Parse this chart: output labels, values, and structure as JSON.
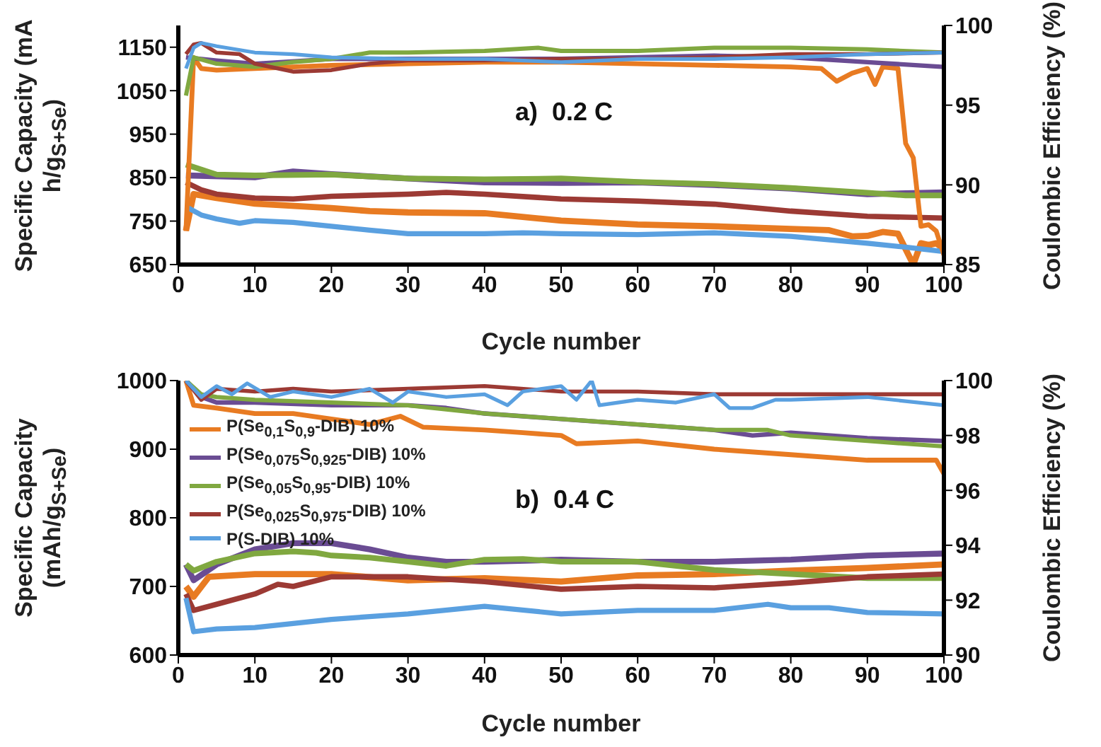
{
  "chart_data": [
    {
      "type": "line",
      "xlabel": "Cycle number",
      "ylabel": "Specific  Capacity (mA h/g$_{S+Se}$)",
      "y2label": "Coulombic Efficiency (%)",
      "annotations": [
        "a)  0.2 C"
      ],
      "xlim": [
        0,
        100
      ],
      "xticks": [
        0,
        10,
        20,
        30,
        40,
        50,
        60,
        70,
        80,
        90,
        100
      ],
      "ylim": [
        650,
        1200
      ],
      "yticks": [
        650,
        750,
        850,
        950,
        1050,
        1150
      ],
      "y2lim": [
        85,
        100
      ],
      "y2ticks": [
        85,
        90,
        95,
        100
      ],
      "series": [
        {
          "color": "#e87b22",
          "x": [
            1,
            2,
            5,
            10,
            20,
            25,
            30,
            40,
            50,
            60,
            70,
            80,
            85,
            88,
            90,
            92,
            94,
            96,
            97,
            98,
            99,
            100
          ],
          "values": [
            728,
            812,
            803,
            790,
            780,
            773,
            770,
            768,
            751,
            742,
            738,
            732,
            729,
            715,
            716,
            725,
            721,
            650,
            699,
            695,
            699,
            686
          ]
        },
        {
          "color": "#6a4c93",
          "x": [
            1,
            10,
            15,
            20,
            30,
            40,
            50,
            60,
            70,
            80,
            90,
            100
          ],
          "values": [
            855,
            851,
            864,
            858,
            848,
            839,
            838,
            839,
            833,
            825,
            812,
            816
          ]
        },
        {
          "color": "#80a840",
          "x": [
            1,
            5,
            10,
            20,
            30,
            40,
            50,
            60,
            70,
            80,
            90,
            95,
            100
          ],
          "values": [
            880,
            857,
            855,
            857,
            848,
            846,
            848,
            840,
            835,
            826,
            815,
            809,
            809
          ]
        },
        {
          "color": "#9c3a34",
          "x": [
            1,
            3,
            5,
            10,
            15,
            20,
            30,
            35,
            40,
            50,
            60,
            70,
            80,
            90,
            100
          ],
          "values": [
            839,
            822,
            812,
            803,
            801,
            807,
            812,
            816,
            812,
            801,
            796,
            789,
            773,
            761,
            757
          ]
        },
        {
          "color": "#5aa0e0",
          "x": [
            1,
            3,
            5,
            8,
            10,
            15,
            20,
            25,
            30,
            40,
            45,
            50,
            60,
            70,
            80,
            90,
            95,
            100
          ],
          "values": [
            783,
            764,
            755,
            745,
            751,
            747,
            738,
            729,
            721,
            721,
            723,
            721,
            719,
            723,
            715,
            699,
            690,
            680
          ]
        },
        {
          "color": "#e87b22",
          "axis": "y2",
          "x": [
            1,
            2,
            3,
            5,
            10,
            20,
            30,
            40,
            50,
            60,
            70,
            80,
            84,
            86,
            88,
            90,
            91,
            92,
            94,
            95,
            96,
            97,
            98,
            99,
            100
          ],
          "values": [
            87.1,
            98.0,
            97.3,
            97.2,
            97.3,
            97.5,
            97.6,
            97.7,
            97.7,
            97.6,
            97.5,
            97.4,
            97.3,
            96.5,
            97.0,
            97.3,
            96.3,
            97.4,
            97.3,
            92.6,
            91.7,
            87.4,
            87.5,
            87.1,
            85.6
          ]
        },
        {
          "color": "#6a4c93",
          "axis": "y2",
          "x": [
            1,
            5,
            10,
            20,
            30,
            40,
            50,
            60,
            70,
            80,
            90,
            100
          ],
          "values": [
            98.0,
            97.8,
            97.6,
            97.9,
            97.9,
            97.9,
            97.9,
            98.0,
            98.1,
            98.0,
            97.7,
            97.4
          ]
        },
        {
          "color": "#80a840",
          "axis": "y2",
          "x": [
            1,
            2,
            5,
            10,
            15,
            20,
            25,
            30,
            40,
            47,
            50,
            60,
            70,
            80,
            90,
            100
          ],
          "values": [
            95.6,
            98.0,
            97.6,
            97.4,
            97.7,
            97.9,
            98.3,
            98.3,
            98.4,
            98.6,
            98.4,
            98.4,
            98.6,
            98.6,
            98.5,
            98.3
          ]
        },
        {
          "color": "#9c3a34",
          "axis": "y2",
          "x": [
            1,
            2,
            3,
            5,
            8,
            10,
            15,
            20,
            25,
            30,
            40,
            50,
            60,
            70,
            80,
            90,
            100
          ],
          "values": [
            98.2,
            98.8,
            98.9,
            98.3,
            98.2,
            97.6,
            97.1,
            97.2,
            97.6,
            97.8,
            97.8,
            97.9,
            97.9,
            98.0,
            98.2,
            98.2,
            98.3
          ]
        },
        {
          "color": "#5aa0e0",
          "axis": "y2",
          "x": [
            1,
            2,
            3,
            5,
            10,
            15,
            20,
            30,
            40,
            50,
            60,
            70,
            80,
            90,
            100
          ],
          "values": [
            97.3,
            98.6,
            98.9,
            98.7,
            98.3,
            98.2,
            98.0,
            97.9,
            97.9,
            97.7,
            97.9,
            97.9,
            98.0,
            98.2,
            98.3
          ]
        }
      ]
    },
    {
      "type": "line",
      "xlabel": "Cycle number",
      "ylabel": "Specific Capacity (mAh/g$_{S+Se}$)",
      "y2label": "Coulombic Efficiency (%)",
      "annotations": [
        "b)  0.4 C"
      ],
      "legend": "top left",
      "xlim": [
        0,
        100
      ],
      "xticks": [
        0,
        10,
        20,
        30,
        40,
        50,
        60,
        70,
        80,
        90,
        100
      ],
      "ylim": [
        600,
        1000
      ],
      "yticks": [
        600,
        700,
        800,
        900,
        1000
      ],
      "y2lim": [
        90,
        100
      ],
      "y2ticks": [
        90,
        92,
        94,
        96,
        98,
        100
      ],
      "series": [
        {
          "name": "P(Se$_{0,1}$S$_{0,9}$-DIB) 10%",
          "color": "#e87b22",
          "x": [
            1,
            2,
            4,
            10,
            20,
            30,
            40,
            50,
            60,
            70,
            80,
            90,
            100
          ],
          "values": [
            700,
            685,
            714,
            718,
            718,
            709,
            712,
            707,
            716,
            718,
            723,
            727,
            732
          ]
        },
        {
          "name": "P(Se$_{0,075}$S$_{0,925}$-DIB) 10%",
          "color": "#6a4c93",
          "x": [
            1,
            2,
            5,
            10,
            15,
            20,
            25,
            30,
            35,
            40,
            50,
            60,
            70,
            80,
            90,
            100
          ],
          "values": [
            732,
            709,
            732,
            754,
            763,
            763,
            754,
            742,
            736,
            736,
            739,
            736,
            736,
            739,
            745,
            748
          ]
        },
        {
          "name": "P(Se$_{0,05}$S$_{0,95}$-DIB) 10%",
          "color": "#80a840",
          "x": [
            1,
            2,
            5,
            10,
            15,
            18,
            20,
            25,
            30,
            35,
            40,
            45,
            50,
            60,
            70,
            80,
            90,
            100
          ],
          "values": [
            732,
            723,
            736,
            748,
            751,
            749,
            745,
            742,
            736,
            730,
            739,
            740,
            736,
            736,
            724,
            718,
            712,
            712
          ]
        },
        {
          "name": "P(Se$_{0,025}$S$_{0,975}$-DIB) 10%",
          "color": "#9c3a34",
          "x": [
            1,
            2,
            5,
            10,
            13,
            15,
            20,
            30,
            40,
            50,
            60,
            70,
            80,
            90,
            100
          ],
          "values": [
            689,
            665,
            674,
            689,
            703,
            700,
            714,
            714,
            707,
            696,
            700,
            698,
            705,
            714,
            718
          ]
        },
        {
          "name": "P(S-DIB) 10%",
          "color": "#5aa0e0",
          "x": [
            1,
            2,
            5,
            10,
            20,
            30,
            40,
            50,
            60,
            70,
            77,
            80,
            85,
            90,
            100
          ],
          "values": [
            683,
            634,
            638,
            640,
            652,
            660,
            671,
            660,
            665,
            665,
            674,
            669,
            669,
            662,
            660
          ]
        },
        {
          "color": "#e87b22",
          "axis": "y2",
          "x": [
            1,
            2,
            5,
            10,
            15,
            20,
            25,
            29,
            32,
            40,
            45,
            50,
            52,
            60,
            70,
            80,
            90,
            99,
            100
          ],
          "values": [
            100,
            99.1,
            99.0,
            98.8,
            98.8,
            98.6,
            98.4,
            98.7,
            98.3,
            98.2,
            98.1,
            98.0,
            97.7,
            97.8,
            97.5,
            97.3,
            97.1,
            97.1,
            96.6
          ]
        },
        {
          "color": "#6a4c93",
          "axis": "y2",
          "x": [
            1,
            3,
            5,
            10,
            20,
            30,
            35,
            40,
            50,
            60,
            70,
            75,
            80,
            90,
            100
          ],
          "values": [
            100,
            99.4,
            99.2,
            99.2,
            99.1,
            99.1,
            99.0,
            98.8,
            98.6,
            98.4,
            98.2,
            98.0,
            98.1,
            97.9,
            97.8
          ]
        },
        {
          "color": "#80a840",
          "axis": "y2",
          "x": [
            1,
            3,
            5,
            10,
            20,
            30,
            40,
            50,
            60,
            70,
            77,
            80,
            90,
            100
          ],
          "values": [
            100,
            99.5,
            99.4,
            99.3,
            99.2,
            99.1,
            98.8,
            98.6,
            98.4,
            98.2,
            98.2,
            98.0,
            97.8,
            97.6
          ]
        },
        {
          "color": "#9c3a34",
          "axis": "y2",
          "x": [
            1,
            3,
            5,
            10,
            15,
            20,
            30,
            40,
            50,
            60,
            70,
            80,
            90,
            100
          ],
          "values": [
            100,
            99.3,
            99.7,
            99.6,
            99.7,
            99.6,
            99.7,
            99.8,
            99.6,
            99.6,
            99.5,
            99.5,
            99.5,
            99.5
          ]
        },
        {
          "color": "#5aa0e0",
          "axis": "y2",
          "x": [
            1,
            2,
            3,
            5,
            7,
            9,
            12,
            15,
            20,
            25,
            28,
            30,
            35,
            40,
            43,
            45,
            50,
            52,
            54,
            55,
            60,
            65,
            70,
            72,
            75,
            78,
            80,
            90,
            100
          ],
          "values": [
            100,
            99.7,
            99.4,
            99.8,
            99.5,
            99.9,
            99.4,
            99.6,
            99.4,
            99.7,
            99.2,
            99.6,
            99.4,
            99.5,
            99.1,
            99.6,
            99.8,
            99.3,
            100,
            99.1,
            99.3,
            99.2,
            99.5,
            99.0,
            99.0,
            99.3,
            99.3,
            99.4,
            99.1
          ]
        }
      ]
    }
  ]
}
